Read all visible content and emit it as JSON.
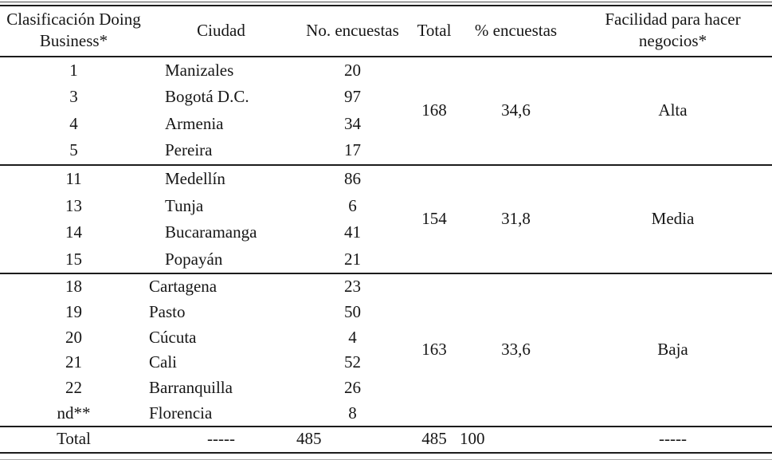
{
  "header": {
    "classification": "Clasificación Doing Business*",
    "city": "Ciudad",
    "surveys": "No. encuestas",
    "total": "Total",
    "pct": "% encuestas",
    "ease": "Facilidad para hacer negocios*"
  },
  "groups": [
    {
      "rows": [
        {
          "rank": "1",
          "city": "Manizales",
          "surveys": "20"
        },
        {
          "rank": "3",
          "city": "Bogotá D.C.",
          "surveys": "97"
        },
        {
          "rank": "4",
          "city": "Armenia",
          "surveys": "34"
        },
        {
          "rank": "5",
          "city": "Pereira",
          "surveys": "17"
        }
      ],
      "total": "168",
      "pct": "34,6",
      "ease": "Alta"
    },
    {
      "rows": [
        {
          "rank": "11",
          "city": "Medellín",
          "surveys": "86"
        },
        {
          "rank": "13",
          "city": "Tunja",
          "surveys": "6"
        },
        {
          "rank": "14",
          "city": "Bucaramanga",
          "surveys": "41"
        },
        {
          "rank": "15",
          "city": "Popayán",
          "surveys": "21"
        }
      ],
      "total": "154",
      "pct": "31,8",
      "ease": "Media"
    },
    {
      "rows": [
        {
          "rank": "18",
          "city": "Cartagena",
          "surveys": "23"
        },
        {
          "rank": "19",
          "city": "Pasto",
          "surveys": "50"
        },
        {
          "rank": "20",
          "city": "Cúcuta",
          "surveys": "4"
        },
        {
          "rank": "21",
          "city": "Cali",
          "surveys": "52"
        },
        {
          "rank": "22",
          "city": "Barranquilla",
          "surveys": "26"
        },
        {
          "rank": "nd**",
          "city": "Florencia",
          "surveys": "8"
        }
      ],
      "total": "163",
      "pct": "33,6",
      "ease": "Baja"
    }
  ],
  "footer": {
    "label": "Total",
    "city_dash": "-----",
    "surveys": "485",
    "total": "485",
    "pct": "100",
    "ease_dash": "-----"
  }
}
